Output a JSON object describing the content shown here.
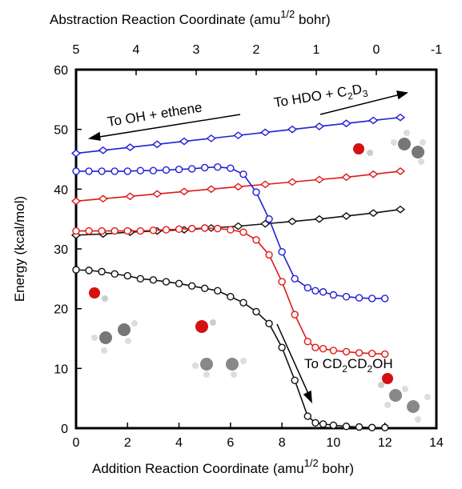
{
  "chart_data": {
    "type": "line",
    "x_label": [
      "Addition Reaction Coordinate (amu",
      "1/2",
      " bohr)"
    ],
    "x2_label": [
      "Abstraction Reaction Coordinate (amu",
      "1/2",
      " bohr)"
    ],
    "y_label": "Energy (kcal/mol)",
    "xlim": [
      0,
      14
    ],
    "xticks": [
      0,
      2,
      4,
      6,
      8,
      10,
      12,
      14
    ],
    "x2lim": [
      5,
      -1
    ],
    "x2ticks": [
      5,
      4,
      3,
      2,
      1,
      0,
      -1
    ],
    "ylim": [
      0,
      60
    ],
    "yticks": [
      0,
      10,
      20,
      30,
      40,
      50,
      60
    ],
    "annotations": [
      [
        "To OH + ethene"
      ],
      [
        "To HDO + C",
        "2",
        "D",
        "3"
      ],
      [
        "To CD",
        "2",
        "CD",
        "2",
        "OH"
      ]
    ],
    "series": [
      {
        "color": "#1f1fd6",
        "marker": "diamond",
        "axis": "x2",
        "x": [
          5,
          4.55,
          4.1,
          3.65,
          3.2,
          2.75,
          2.3,
          1.85,
          1.4,
          0.95,
          0.5,
          0.05,
          -0.4
        ],
        "values": [
          46,
          46.5,
          47,
          47.5,
          48,
          48.5,
          49,
          49.5,
          50,
          50.5,
          51,
          51.5,
          52
        ]
      },
      {
        "color": "#e01818",
        "marker": "diamond",
        "axis": "x2",
        "x": [
          5,
          4.55,
          4.1,
          3.65,
          3.2,
          2.75,
          2.3,
          1.85,
          1.4,
          0.95,
          0.5,
          0.05,
          -0.4
        ],
        "values": [
          38,
          38.4,
          38.8,
          39.2,
          39.6,
          40,
          40.4,
          40.8,
          41.2,
          41.6,
          42,
          42.5,
          43
        ]
      },
      {
        "color": "#111111",
        "marker": "diamond",
        "axis": "x2",
        "x": [
          5,
          4.55,
          4.1,
          3.65,
          3.2,
          2.75,
          2.3,
          1.85,
          1.4,
          0.95,
          0.5,
          0.05,
          -0.4
        ],
        "values": [
          32.3,
          32.5,
          32.8,
          33,
          33.2,
          33.5,
          33.8,
          34.2,
          34.6,
          35,
          35.5,
          36,
          36.6
        ]
      },
      {
        "color": "#1f1fd6",
        "marker": "circle",
        "x": [
          0,
          0.5,
          1,
          1.5,
          2,
          2.5,
          3,
          3.5,
          4,
          4.5,
          5,
          5.5,
          6,
          6.5,
          7,
          7.5,
          8,
          8.5,
          9,
          9.3,
          9.6,
          10,
          10.5,
          11,
          11.5,
          12
        ],
        "values": [
          43,
          43,
          43,
          43,
          43,
          43.1,
          43.1,
          43.2,
          43.3,
          43.4,
          43.6,
          43.7,
          43.5,
          42.5,
          39.5,
          35,
          29.5,
          25,
          23.5,
          23,
          22.8,
          22.3,
          22,
          21.8,
          21.7,
          21.7
        ]
      },
      {
        "color": "#e01818",
        "marker": "circle",
        "x": [
          0,
          0.5,
          1,
          1.5,
          2,
          2.5,
          3,
          3.5,
          4,
          4.5,
          5,
          5.5,
          6,
          6.5,
          7,
          7.5,
          8,
          8.5,
          9,
          9.3,
          9.6,
          10,
          10.5,
          11,
          11.5,
          12
        ],
        "values": [
          33,
          33,
          33,
          33,
          33,
          33,
          33.1,
          33.2,
          33.3,
          33.4,
          33.5,
          33.4,
          33.2,
          32.8,
          31.5,
          29,
          24.5,
          19,
          14.5,
          13.5,
          13.3,
          13,
          12.8,
          12.6,
          12.5,
          12.4
        ]
      },
      {
        "color": "#111111",
        "marker": "circle",
        "x": [
          0,
          0.5,
          1,
          1.5,
          2,
          2.5,
          3,
          3.5,
          4,
          4.5,
          5,
          5.5,
          6,
          6.5,
          7,
          7.5,
          8,
          8.5,
          9,
          9.3,
          9.6,
          10,
          10.5,
          11,
          11.5,
          12
        ],
        "values": [
          26.5,
          26.4,
          26.2,
          25.8,
          25.5,
          25,
          24.8,
          24.5,
          24.2,
          23.8,
          23.4,
          23,
          22,
          21,
          19.5,
          17.5,
          13.5,
          8,
          2,
          0.9,
          0.7,
          0.5,
          0.3,
          0.2,
          0.1,
          0.1
        ]
      }
    ]
  }
}
